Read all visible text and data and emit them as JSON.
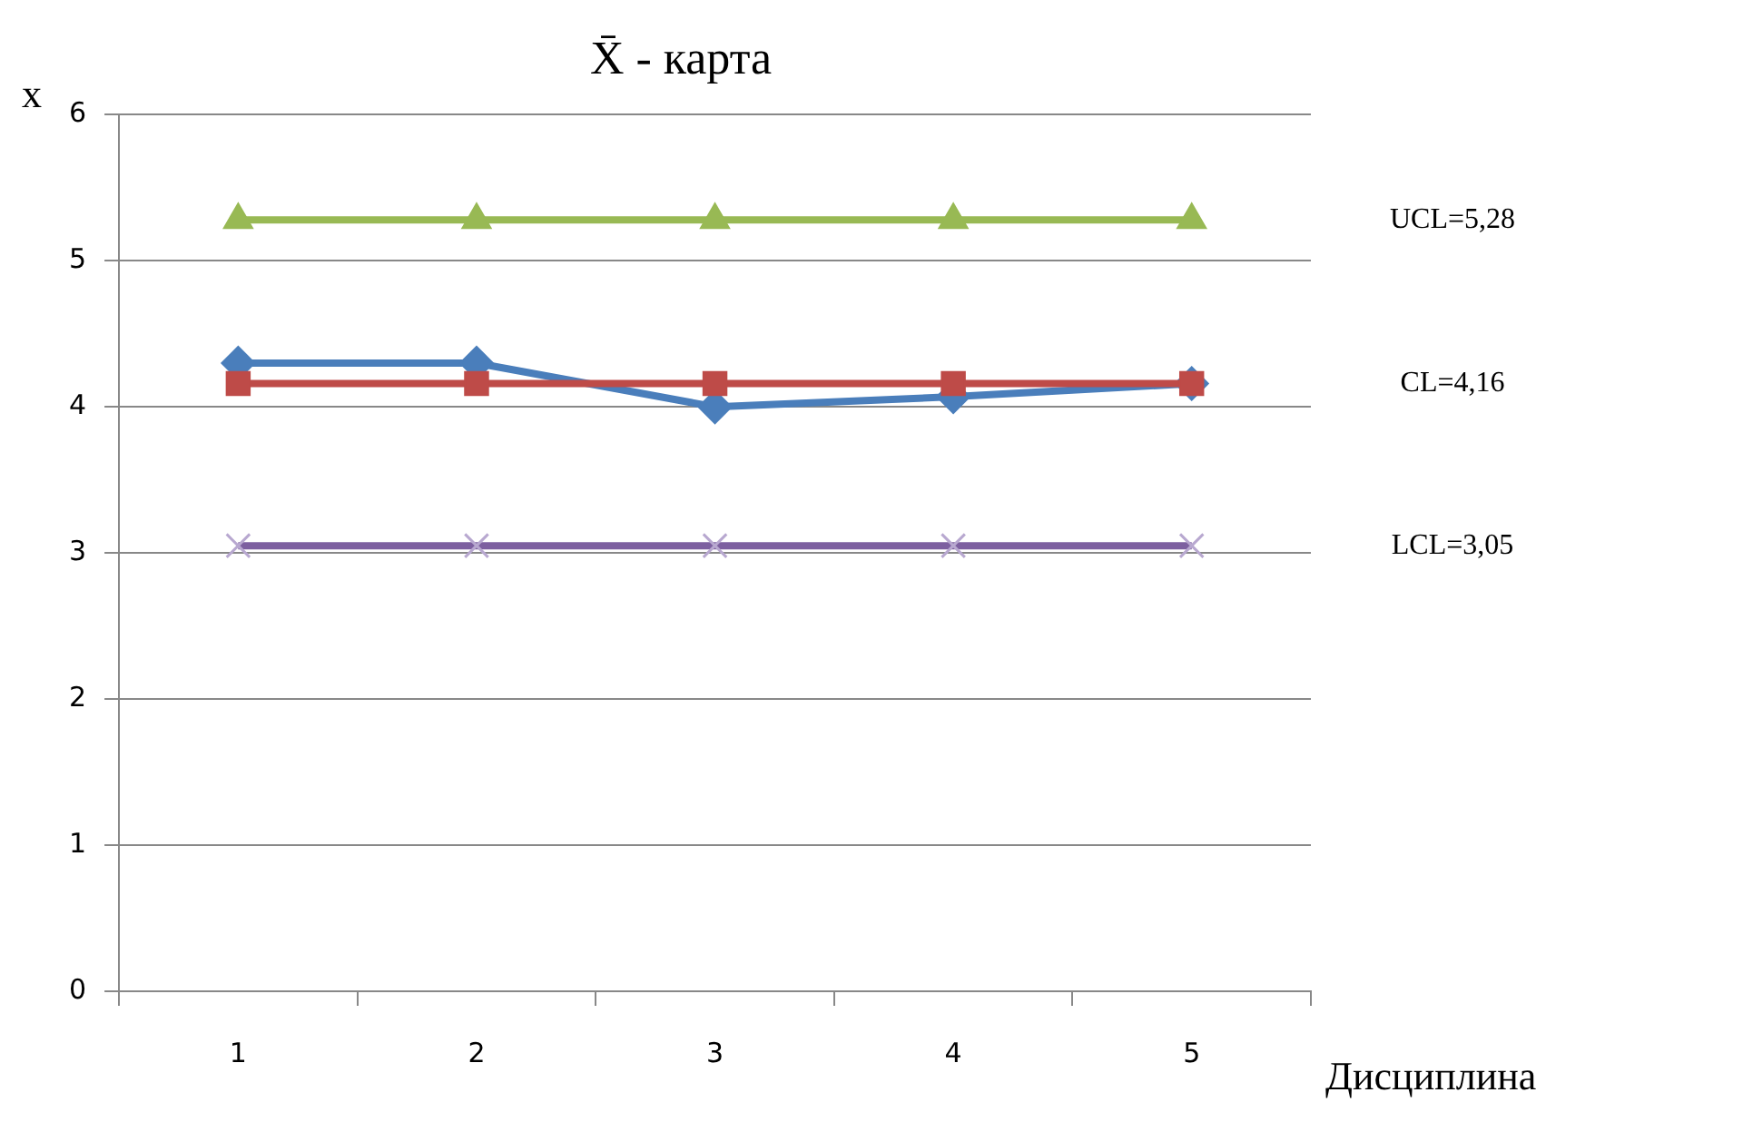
{
  "chart_data": {
    "type": "line",
    "title": "X̄ - карта",
    "xlabel": "Дисциплина",
    "ylabel": "x",
    "categories": [
      "1",
      "2",
      "3",
      "4",
      "5"
    ],
    "series": [
      {
        "color": "#98b954",
        "marker": "triangle",
        "values": [
          5.28,
          5.28,
          5.28,
          5.28,
          5.28
        ]
      },
      {
        "color": "#be4b48",
        "marker": "square",
        "values": [
          4.16,
          4.16,
          4.16,
          4.16,
          4.16
        ]
      },
      {
        "color": "#7d60a0",
        "marker": "cross",
        "values": [
          3.05,
          3.05,
          3.05,
          3.05,
          3.05
        ]
      },
      {
        "color": "#4a7ebb",
        "marker": "diamond",
        "values": [
          4.3,
          4.3,
          4.0,
          4.07,
          4.16
        ]
      }
    ],
    "ylim": [
      0,
      6
    ],
    "yticks": [
      0,
      1,
      2,
      3,
      4,
      5,
      6
    ],
    "grid": "y",
    "legend": false,
    "annotations": [
      "UCL=5,28",
      "CL=4,16",
      "LCL=3,05"
    ]
  }
}
